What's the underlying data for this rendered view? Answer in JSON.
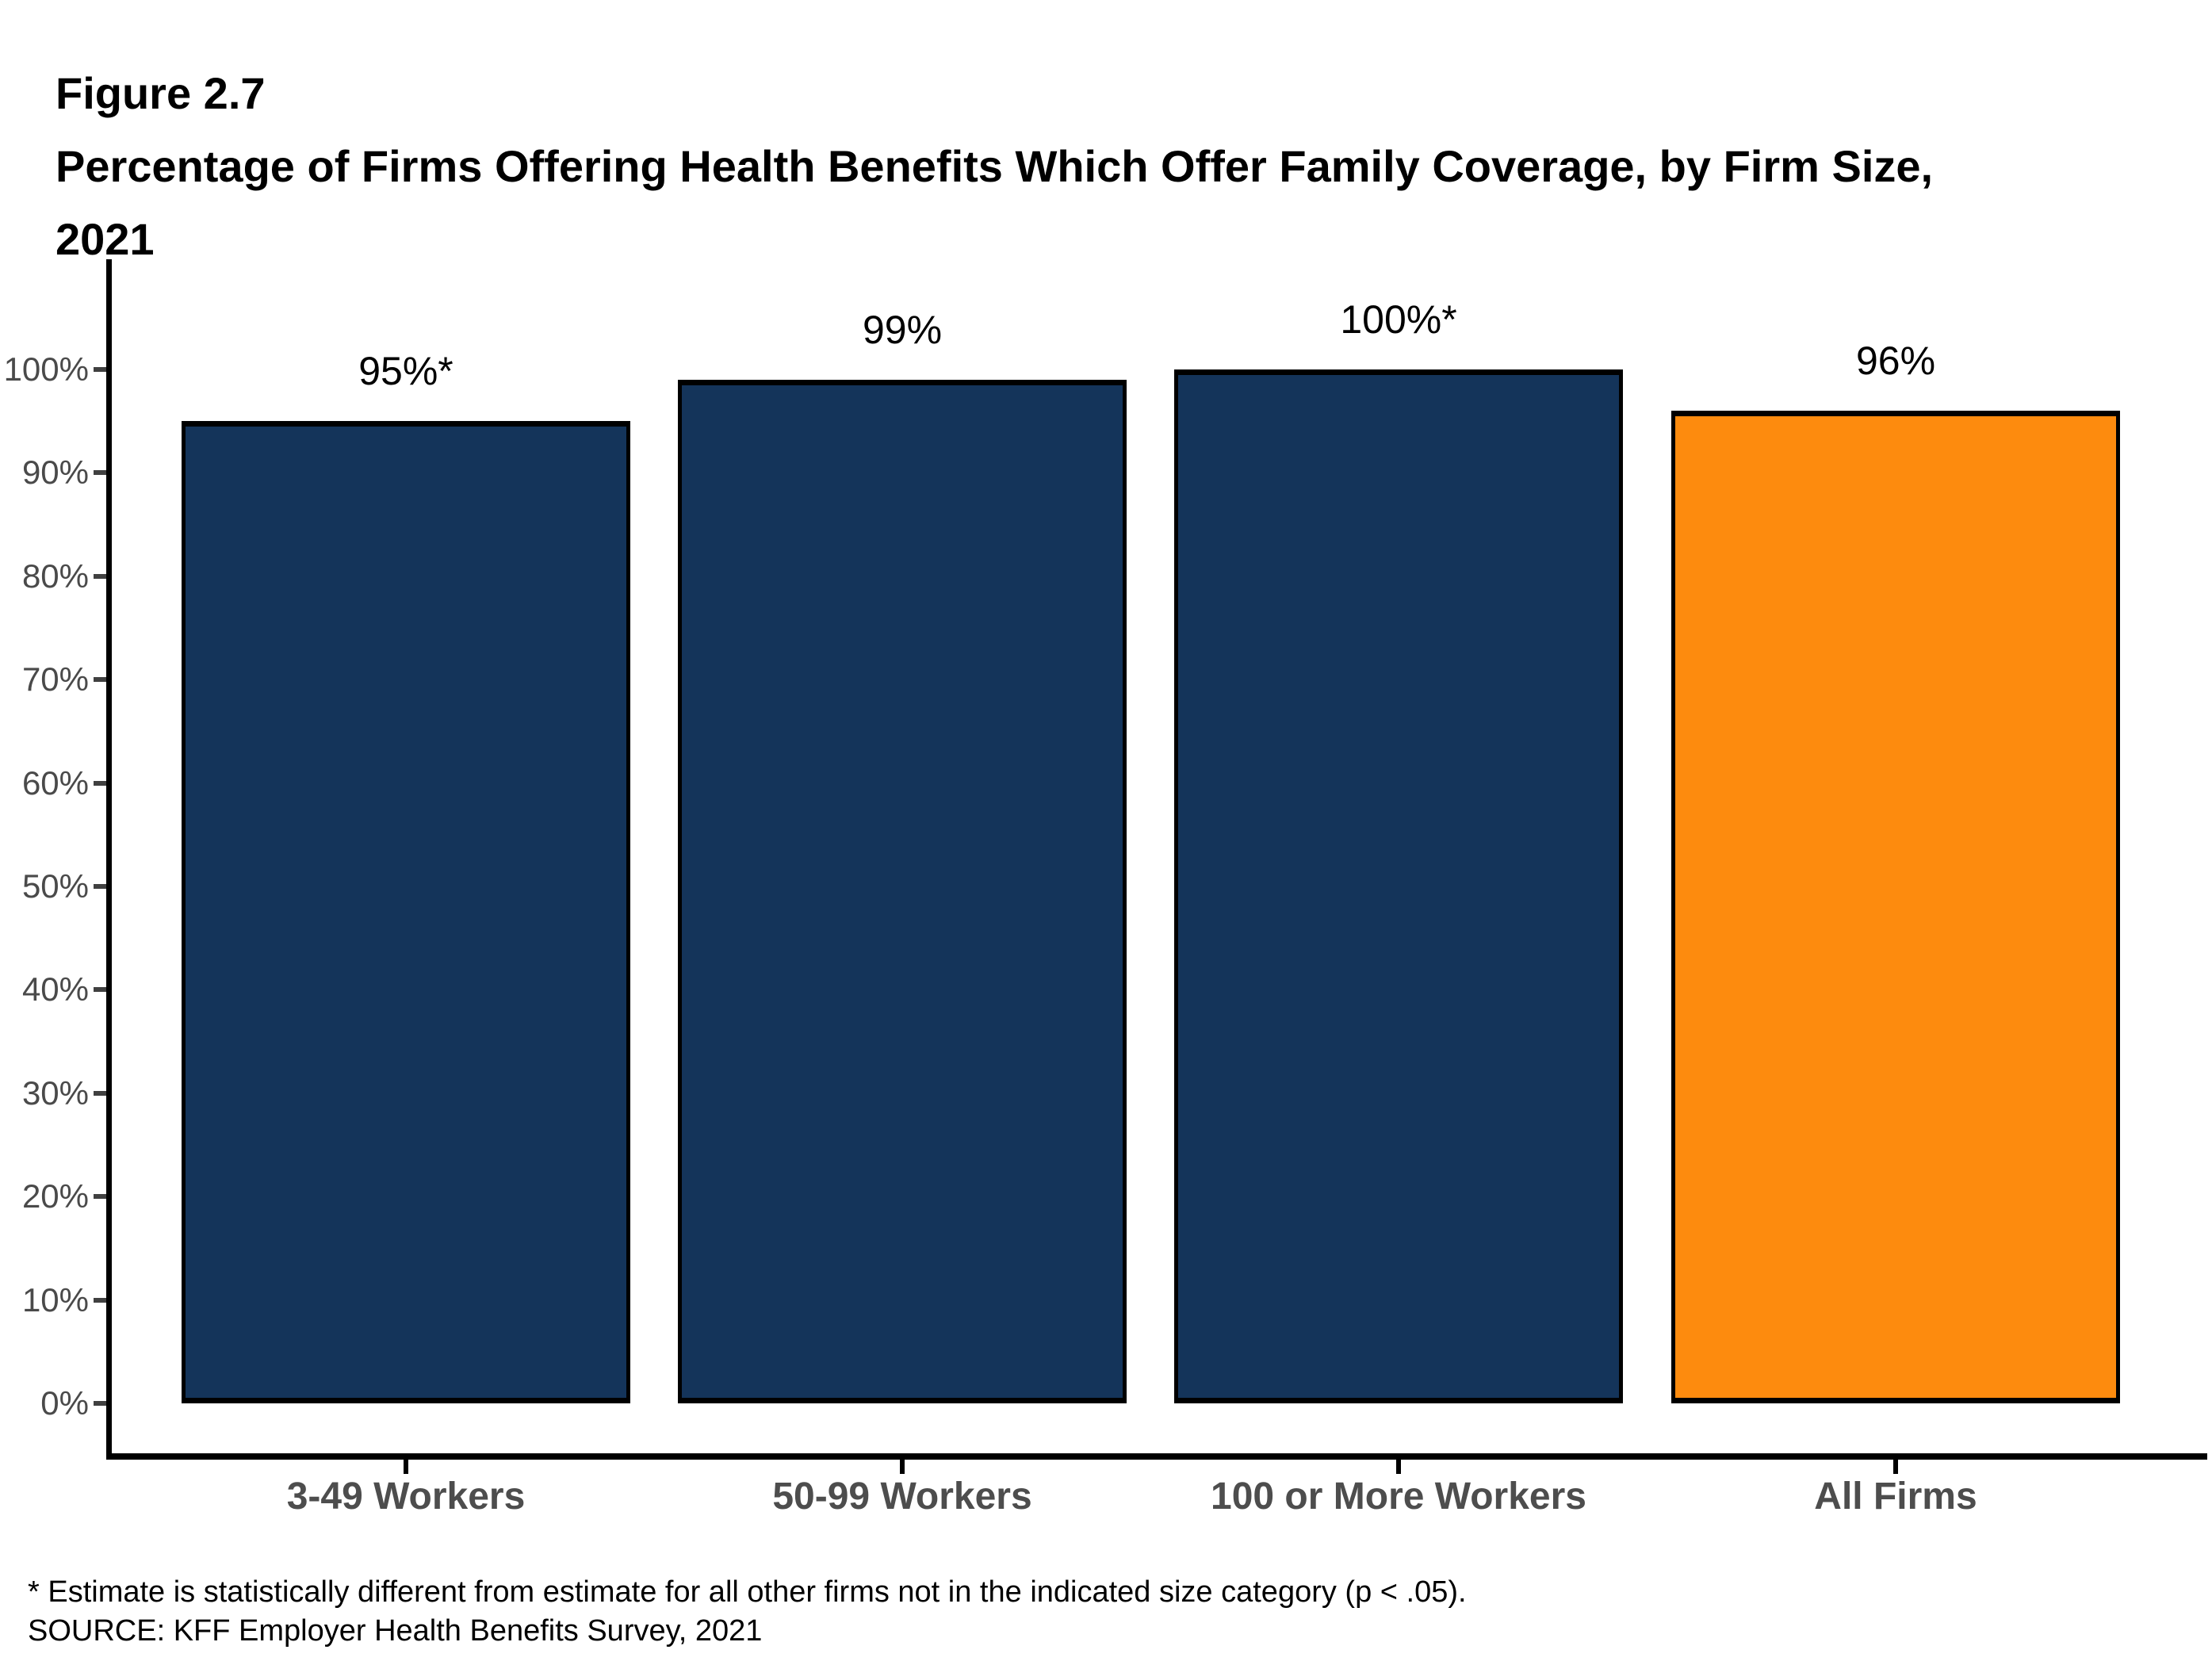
{
  "header": {
    "figure_label": "Figure 2.7",
    "title_line_1": "Percentage of Firms Offering Health Benefits Which Offer Family Coverage, by Firm Size,",
    "title_line_2": "2021"
  },
  "chart_data": {
    "type": "bar",
    "title": "Percentage of Firms Offering Health Benefits Which Offer Family Coverage, by Firm Size, 2021",
    "categories": [
      "3-49 Workers",
      "50-99 Workers",
      "100 or More Workers",
      "All Firms"
    ],
    "values": [
      95,
      99,
      100,
      96
    ],
    "bar_labels": [
      "95%*",
      "99%",
      "100%*",
      "96%"
    ],
    "bar_colors": [
      "#14345A",
      "#14345A",
      "#14345A",
      "#FD8B0E"
    ],
    "xlabel": "",
    "ylabel": "",
    "ylim": [
      0,
      100
    ],
    "y_tick_labels": [
      "0%",
      "10%",
      "20%",
      "30%",
      "40%",
      "50%",
      "60%",
      "70%",
      "80%",
      "90%",
      "100%"
    ],
    "grid": false,
    "legend": false,
    "colors": {
      "navy_bar": "#14345A",
      "orange_bar": "#FD8B0E",
      "bar_outline": "#000000",
      "axis": "#000000",
      "y_tick_label": "#4A4A4A",
      "category_label": "#4D4D4D",
      "title_text": "#000000"
    }
  },
  "footnotes": {
    "asterisk_note": "* Estimate is statistically different from estimate for all other firms not in the indicated size category (p < .05).",
    "source": "SOURCE: KFF Employer Health Benefits Survey, 2021"
  }
}
